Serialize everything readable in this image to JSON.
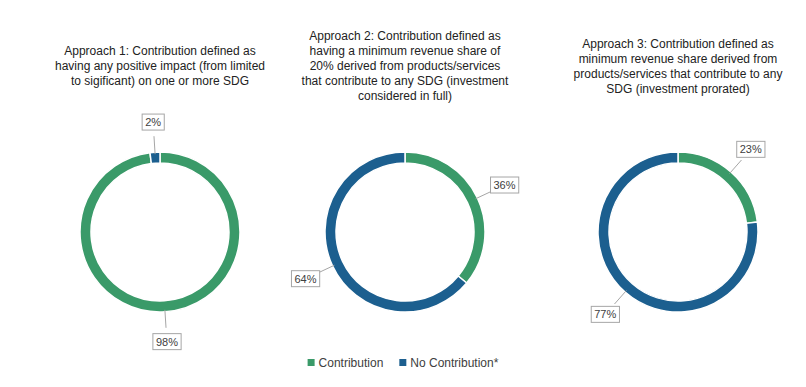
{
  "chart_data": [
    {
      "type": "donut",
      "title": "Approach 1: Contribution defined as having any positive impact (from limited to sigificant) on one or more SDG",
      "categories": [
        "Contribution",
        "No Contribution*"
      ],
      "values": [
        98,
        2
      ],
      "value_labels": [
        "98%",
        "2%"
      ],
      "colors": [
        "#3a9a69",
        "#1c5f8f"
      ],
      "data_labels": true,
      "legend": "bottom"
    },
    {
      "type": "donut",
      "title": "Approach 2: Contribution defined as having a minimum revenue share of 20% derived from products/services that contribute to any SDG (investment considered in full)",
      "categories": [
        "Contribution",
        "No Contribution*"
      ],
      "values": [
        36,
        64
      ],
      "value_labels": [
        "36%",
        "64%"
      ],
      "colors": [
        "#3a9a69",
        "#1c5f8f"
      ],
      "data_labels": true
    },
    {
      "type": "donut",
      "title": "Approach 3: Contribution defined as minimum revenue share derived from products/services that contribute to any SDG (investment prorated)",
      "categories": [
        "Contribution",
        "No Contribution*"
      ],
      "values": [
        23,
        77
      ],
      "value_labels": [
        "23%",
        "77%"
      ],
      "colors": [
        "#3a9a69",
        "#1c5f8f"
      ],
      "data_labels": true
    }
  ]
}
